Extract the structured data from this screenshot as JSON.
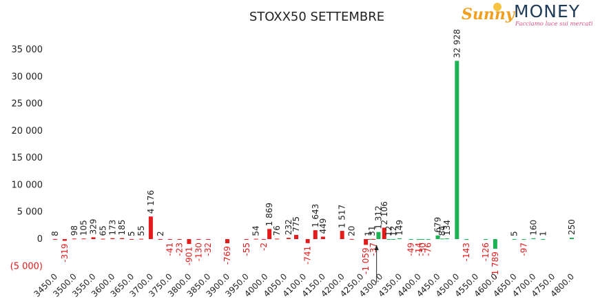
{
  "logo": {
    "brand_part1": "Sunny",
    "brand_part2": "MONEY",
    "tagline": "Facciamo luce sui mercati"
  },
  "chart_data": {
    "type": "bar",
    "title": "STOXX50 SETTEMBRE",
    "ylim": [
      -5000,
      35000
    ],
    "y_ticks": [
      -5000,
      0,
      5000,
      10000,
      15000,
      20000,
      25000,
      30000,
      35000
    ],
    "y_tick_labels": [
      "(5 000)",
      "0",
      "5 000",
      "10 000",
      "15 000",
      "20 000",
      "25 000",
      "30 000",
      "35 000"
    ],
    "x_tick_labels": [
      "3450.0",
      "3500.0",
      "3550.0",
      "3600.0",
      "3650.0",
      "3700.0",
      "3750.0",
      "3800.0",
      "3850.0",
      "3900.0",
      "3950.0",
      "4000.0",
      "4050.0",
      "4100.0",
      "4150.0",
      "4200.0",
      "4250.0",
      "4300.0",
      "4350.0",
      "4400.0",
      "4450.0",
      "4500.0",
      "4550.0",
      "4600.0",
      "4650.0",
      "4700.0",
      "4750.0",
      "4800.0"
    ],
    "grid": false,
    "legend": "none",
    "colors": {
      "positive_red": "#e31b1b",
      "negative_red": "#e31b1b",
      "green": "#1db354",
      "negative_label": "#e31b1b",
      "positive_label": "#222222"
    },
    "points": [
      {
        "strike": 3450,
        "value": 8,
        "label": "8",
        "color": "red"
      },
      {
        "strike": 3475,
        "value": -319,
        "label": "-319",
        "color": "red"
      },
      {
        "strike": 3500,
        "value": 98,
        "label": "98",
        "color": "red"
      },
      {
        "strike": 3525,
        "value": 105,
        "label": "105",
        "color": "red"
      },
      {
        "strike": 3550,
        "value": 329,
        "label": "329",
        "color": "red"
      },
      {
        "strike": 3575,
        "value": 65,
        "label": "65",
        "color": "red"
      },
      {
        "strike": 3600,
        "value": 173,
        "label": "173",
        "color": "red"
      },
      {
        "strike": 3625,
        "value": 185,
        "label": "185",
        "color": "red"
      },
      {
        "strike": 3650,
        "value": 5,
        "label": "5",
        "color": "red"
      },
      {
        "strike": 3675,
        "value": 55,
        "label": "55",
        "color": "red"
      },
      {
        "strike": 3700,
        "value": 4176,
        "label": "4 176",
        "color": "red"
      },
      {
        "strike": 3725,
        "value": 2,
        "label": "2",
        "color": "red"
      },
      {
        "strike": 3750,
        "value": -41,
        "label": "-41",
        "color": "red"
      },
      {
        "strike": 3775,
        "value": -23,
        "label": "-23",
        "color": "red"
      },
      {
        "strike": 3800,
        "value": -901,
        "label": "-901",
        "color": "red"
      },
      {
        "strike": 3825,
        "value": -130,
        "label": "-130",
        "color": "red"
      },
      {
        "strike": 3850,
        "value": -32,
        "label": "-32",
        "color": "red"
      },
      {
        "strike": 3900,
        "value": -769,
        "label": "-769",
        "color": "red"
      },
      {
        "strike": 3950,
        "value": -55,
        "label": "-55",
        "color": "red"
      },
      {
        "strike": 3975,
        "value": 54,
        "label": "54",
        "color": "red"
      },
      {
        "strike": 3995,
        "value": -2,
        "label": "-2",
        "color": "red"
      },
      {
        "strike": 4010,
        "value": 1869,
        "label": "1 869",
        "color": "red"
      },
      {
        "strike": 4030,
        "value": 76,
        "label": "76",
        "color": "red"
      },
      {
        "strike": 4060,
        "value": 232,
        "label": "232",
        "color": "red"
      },
      {
        "strike": 4080,
        "value": 775,
        "label": "775",
        "color": "red"
      },
      {
        "strike": 4110,
        "value": -741,
        "label": "-741",
        "color": "red"
      },
      {
        "strike": 4130,
        "value": 1643,
        "label": "1 643",
        "color": "red"
      },
      {
        "strike": 4150,
        "value": 449,
        "label": "449",
        "color": "red"
      },
      {
        "strike": 4200,
        "value": 1517,
        "label": "1 517",
        "color": "red"
      },
      {
        "strike": 4225,
        "value": 20,
        "label": "20",
        "color": "red"
      },
      {
        "strike": 4262,
        "value": -1059,
        "label": "-1 059",
        "color": "red"
      },
      {
        "strike": 4268,
        "value": 1,
        "label": "1",
        "color": "red"
      },
      {
        "strike": 4278,
        "value": 31,
        "label": "31",
        "color": "green"
      },
      {
        "strike": 4282,
        "value": -37,
        "label": "-37",
        "color": "red"
      },
      {
        "strike": 4295,
        "value": 1312,
        "label": "1 312",
        "color": "green"
      },
      {
        "strike": 4310,
        "value": 2106,
        "label": "2 106",
        "color": "red"
      },
      {
        "strike": 4322,
        "value": 12,
        "label": "12",
        "color": "green"
      },
      {
        "strike": 4334,
        "value": 12,
        "label": "12",
        "color": "green"
      },
      {
        "strike": 4350,
        "value": 149,
        "label": "149",
        "color": "green"
      },
      {
        "strike": 4380,
        "value": -49,
        "label": "-49",
        "color": "green"
      },
      {
        "strike": 4400,
        "value": -14,
        "label": "-14",
        "color": "green"
      },
      {
        "strike": 4410,
        "value": -30,
        "label": "-30",
        "color": "green"
      },
      {
        "strike": 4425,
        "value": -76,
        "label": "-76",
        "color": "green"
      },
      {
        "strike": 4450,
        "value": 679,
        "label": "679",
        "color": "green"
      },
      {
        "strike": 4462,
        "value": 84,
        "label": "84",
        "color": "green"
      },
      {
        "strike": 4474,
        "value": 134,
        "label": "134",
        "color": "green"
      },
      {
        "strike": 4500,
        "value": 32928,
        "label": "32 928",
        "color": "green"
      },
      {
        "strike": 4525,
        "value": -143,
        "label": "-143",
        "color": "green"
      },
      {
        "strike": 4575,
        "value": -126,
        "label": "-126",
        "color": "green"
      },
      {
        "strike": 4600,
        "value": -1789,
        "label": "-1 789",
        "color": "green"
      },
      {
        "strike": 4650,
        "value": 5,
        "label": "5",
        "color": "green"
      },
      {
        "strike": 4675,
        "value": -97,
        "label": "-97",
        "color": "green"
      },
      {
        "strike": 4700,
        "value": 160,
        "label": "160",
        "color": "green"
      },
      {
        "strike": 4725,
        "value": 1,
        "label": "1",
        "color": "green"
      },
      {
        "strike": 4800,
        "value": 250,
        "label": "250",
        "color": "green"
      }
    ],
    "marker": {
      "strike": 4290
    }
  }
}
